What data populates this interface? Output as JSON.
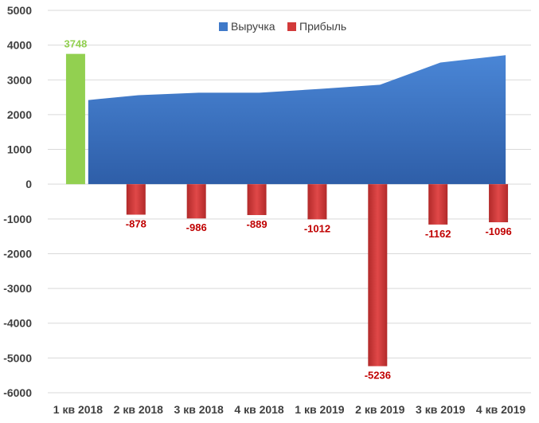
{
  "chart_data": {
    "type": "bar",
    "categories": [
      "1 кв 2018",
      "2 кв 2018",
      "3 кв 2018",
      "4 кв 2018",
      "1 кв 2019",
      "2 кв 2019",
      "3 кв 2019",
      "4 кв 2019"
    ],
    "series": [
      {
        "name": "Выручка",
        "type": "area",
        "color": "#3f79c9",
        "values": [
          2420,
          2560,
          2630,
          2630,
          2740,
          2860,
          3500,
          3710
        ]
      },
      {
        "name": "Прибыль",
        "type": "bar",
        "color": "#d23a3a",
        "highlight_color": "#92d050",
        "values": [
          3748,
          -878,
          -986,
          -889,
          -1012,
          -5236,
          -1162,
          -1096
        ],
        "labels": [
          "3748",
          "-878",
          "-986",
          "-889",
          "-1012",
          "-5236",
          "-1162",
          "-1096"
        ],
        "label_color_negative": "#c00000",
        "label_color_positive": "#92d050"
      }
    ],
    "ylim": [
      -6000,
      5000
    ],
    "yticks": [
      "-6000",
      "-5000",
      "-4000",
      "-3000",
      "-2000",
      "-1000",
      "0",
      "1000",
      "2000",
      "3000",
      "4000",
      "5000"
    ],
    "grid": true,
    "legend_position": "top"
  }
}
